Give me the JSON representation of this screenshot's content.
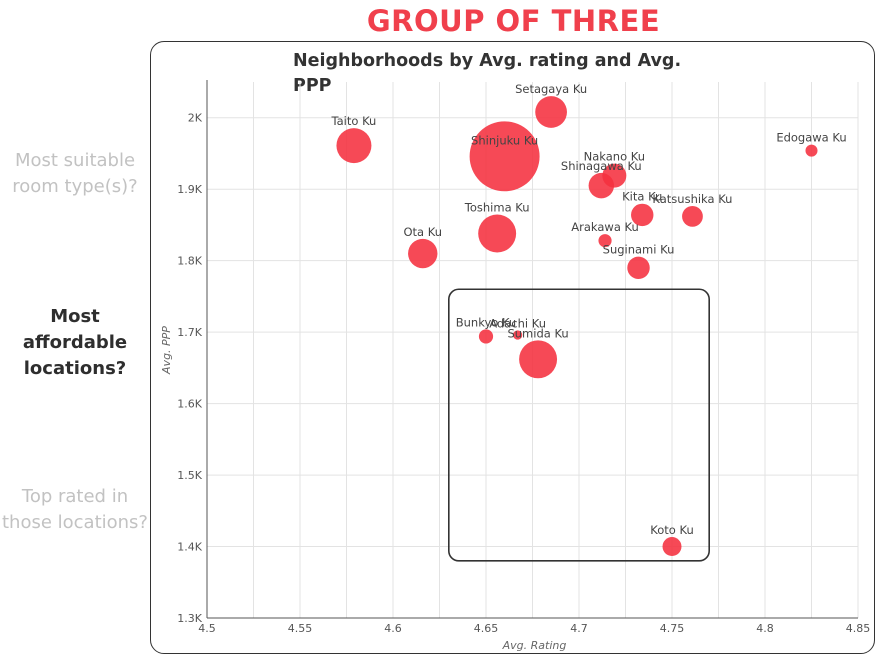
{
  "header": {
    "title": "GROUP OF THREE"
  },
  "sidebar": {
    "questions": [
      {
        "text": "Most suitable room type(s)?",
        "active": false
      },
      {
        "text": "Most affordable locations?",
        "active": true
      },
      {
        "text": "Top rated in those locations?",
        "active": false
      }
    ]
  },
  "colors": {
    "accent": "#f0404c",
    "marker": "#f5303f",
    "frame": "#333333"
  },
  "chart_data": {
    "type": "scatter",
    "title": "Neighborhoods by Avg. rating and Avg. PPP",
    "xlabel": "Avg. Rating",
    "ylabel": "Avg. PPP",
    "xlim": [
      4.5,
      4.85
    ],
    "ylim": [
      1300,
      2050
    ],
    "xticks": [
      4.5,
      4.55,
      4.6,
      4.65,
      4.7,
      4.75,
      4.8,
      4.85
    ],
    "xtick_labels": [
      "4.5",
      "4.55",
      "4.6",
      "4.65",
      "4.7",
      "4.75",
      "4.8",
      "4.85"
    ],
    "yticks": [
      1300,
      1400,
      1500,
      1600,
      1700,
      1800,
      1900,
      2000
    ],
    "ytick_labels": [
      "1.3K",
      "1.4K",
      "1.5K",
      "1.6K",
      "1.7K",
      "1.8K",
      "1.9K",
      "2K"
    ],
    "grid": true,
    "size_encoding": "bubble area",
    "highlight_region": {
      "x": [
        4.63,
        4.77
      ],
      "y": [
        1380,
        1760
      ]
    },
    "points": [
      {
        "label": "Setagaya Ku",
        "x": 4.685,
        "y": 2008,
        "size": 7
      },
      {
        "label": "Taito Ku",
        "x": 4.579,
        "y": 1961,
        "size": 8.5
      },
      {
        "label": "Shinjuku Ku",
        "x": 4.66,
        "y": 1946,
        "size": 34
      },
      {
        "label": "Edogawa Ku",
        "x": 4.825,
        "y": 1954,
        "size": 1
      },
      {
        "label": "Nakano Ku",
        "x": 4.719,
        "y": 1919,
        "size": 4
      },
      {
        "label": "Shinagawa Ku",
        "x": 4.712,
        "y": 1905,
        "size": 4.5
      },
      {
        "label": "Kita Ku",
        "x": 4.734,
        "y": 1864,
        "size": 3.5
      },
      {
        "label": "Katsushika Ku",
        "x": 4.761,
        "y": 1862,
        "size": 3
      },
      {
        "label": "Toshima Ku",
        "x": 4.656,
        "y": 1838,
        "size": 10
      },
      {
        "label": "Arakawa Ku",
        "x": 4.714,
        "y": 1828,
        "size": 1.2
      },
      {
        "label": "Ota Ku",
        "x": 4.616,
        "y": 1810,
        "size": 6
      },
      {
        "label": "Suginami Ku",
        "x": 4.732,
        "y": 1790,
        "size": 3.5
      },
      {
        "label": "Bunkyo Ku",
        "x": 4.65,
        "y": 1694,
        "size": 1.4
      },
      {
        "label": "Adachi Ku",
        "x": 4.667,
        "y": 1696,
        "size": 0.6
      },
      {
        "label": "Sumida Ku",
        "x": 4.678,
        "y": 1662,
        "size": 10
      },
      {
        "label": "Koto Ku",
        "x": 4.75,
        "y": 1400,
        "size": 2.5
      }
    ]
  }
}
